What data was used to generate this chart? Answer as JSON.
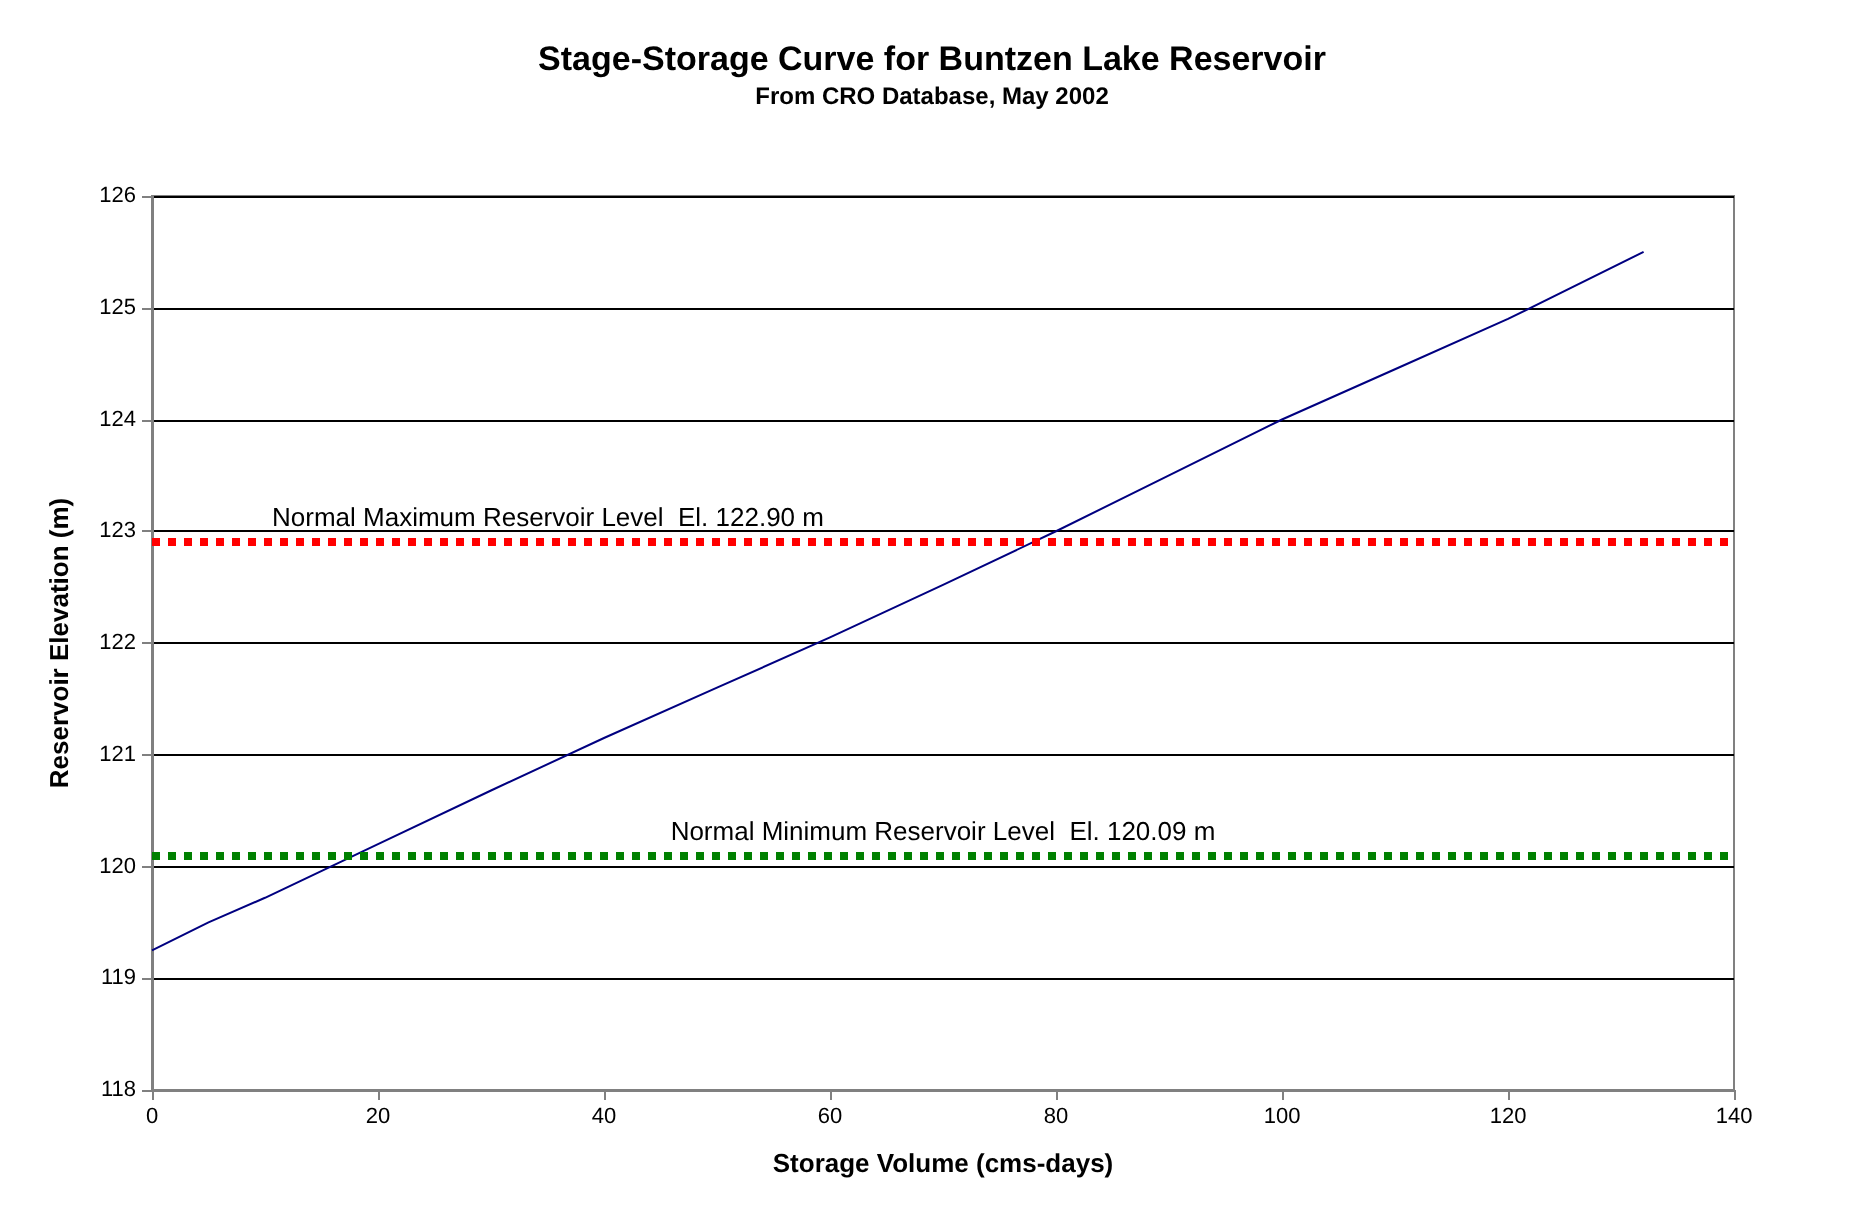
{
  "chart_data": {
    "type": "line",
    "title": "Stage-Storage Curve for Buntzen Lake Reservoir",
    "subtitle": "From CRO Database, May 2002",
    "xlabel": "Storage Volume (cms-days)",
    "ylabel": "Reservoir Elevation (m)",
    "x": [
      0,
      5,
      10,
      20,
      30,
      40,
      50,
      60,
      70,
      80,
      90,
      100,
      110,
      120,
      132
    ],
    "series": [
      {
        "color": "#000080",
        "values": [
          119.25,
          119.5,
          119.72,
          120.2,
          120.68,
          121.15,
          121.6,
          122.05,
          122.52,
          123.0,
          123.5,
          124.0,
          124.45,
          124.9,
          125.5
        ]
      }
    ],
    "xlim": [
      0,
      140
    ],
    "xticks": [
      0,
      20,
      40,
      60,
      80,
      100,
      120,
      140
    ],
    "ylim": [
      118,
      126
    ],
    "yticks": [
      118,
      119,
      120,
      121,
      122,
      123,
      124,
      125,
      126
    ],
    "grid": "y",
    "marker": "none",
    "line_style": "solid",
    "ref_lines": [
      {
        "axis": "y",
        "value": 122.9,
        "label": "Normal Maximum Reservoir Level  El. 122.90 m",
        "color": "#ff0000",
        "line_style": "dotted"
      },
      {
        "axis": "y",
        "value": 120.09,
        "label": "Normal Minimum Reservoir Level  El. 120.09 m",
        "color": "#008000",
        "line_style": "dotted"
      }
    ]
  }
}
